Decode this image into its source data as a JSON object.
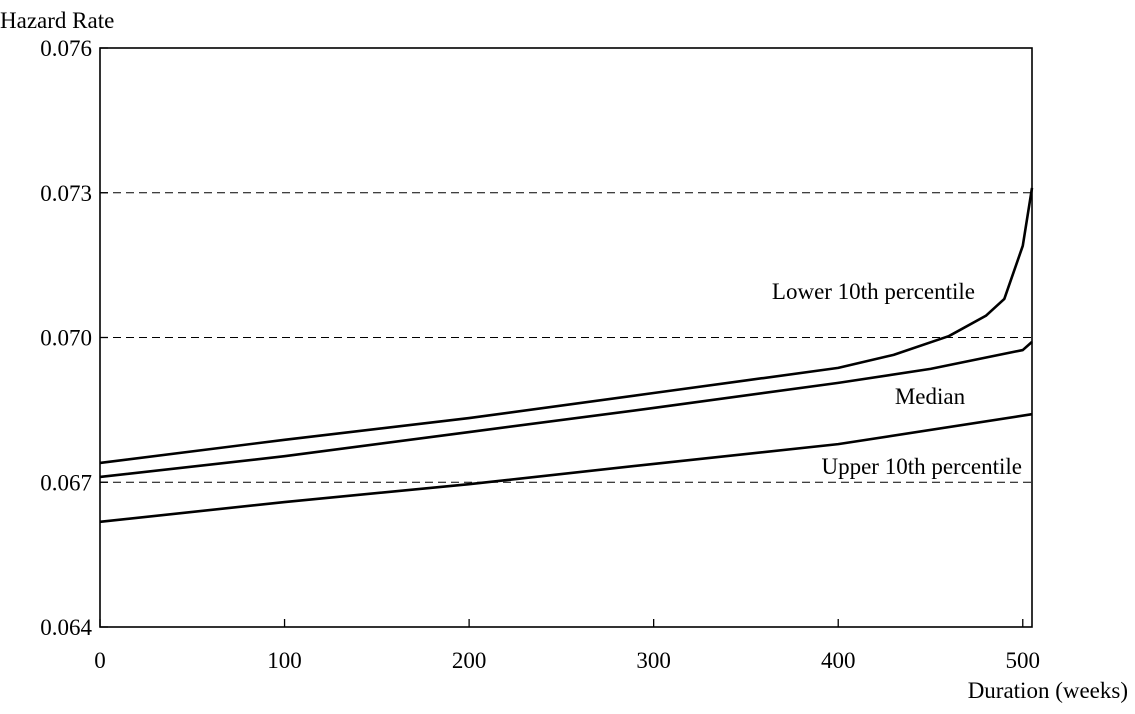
{
  "chart_data": {
    "type": "line",
    "y_label": "Hazard Rate",
    "x_label": "Duration (weeks)",
    "xlim": [
      0,
      505
    ],
    "xticks": [
      0,
      100,
      200,
      300,
      400,
      500
    ],
    "ylim": [
      0.064,
      0.076
    ],
    "yticks": [
      0.064,
      0.067,
      {
        "value": 0.07,
        "label": "0.070"
      },
      0.073,
      0.076
    ],
    "grid": true,
    "series": [
      {
        "name": "Lower 10th percentile",
        "color": "#000000",
        "x": [
          0,
          100,
          200,
          300,
          400,
          430,
          460,
          480,
          490,
          500,
          505
        ],
        "values": [
          0.0674,
          0.06788,
          0.06833,
          0.06885,
          0.06937,
          0.06964,
          0.07003,
          0.07045,
          0.0708,
          0.0719,
          0.0731
        ]
      },
      {
        "name": "Median",
        "color": "#000000",
        "x": [
          0,
          100,
          200,
          300,
          400,
          450,
          500,
          505
        ],
        "values": [
          0.06711,
          0.06754,
          0.06804,
          0.06854,
          0.06906,
          0.06935,
          0.06974,
          0.06991
        ]
      },
      {
        "name": "Upper 10th percentile",
        "color": "#000000",
        "x": [
          0,
          100,
          200,
          300,
          400,
          505
        ],
        "values": [
          0.06618,
          0.06659,
          0.06696,
          0.06738,
          0.06779,
          0.06841
        ]
      }
    ]
  }
}
